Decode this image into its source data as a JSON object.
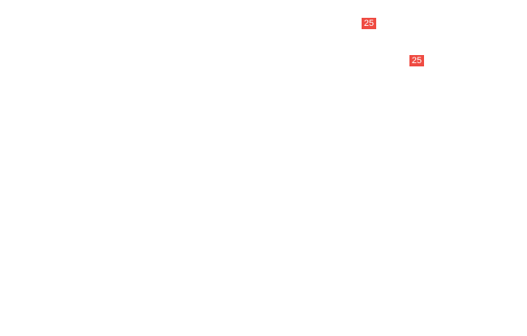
{
  "page": {
    "background_color": "#ffffff"
  },
  "badges": [
    {
      "label": "25",
      "background_color": "#EF4B42",
      "text_color": "#ffffff"
    },
    {
      "label": "25",
      "background_color": "#EF4B42",
      "text_color": "#ffffff"
    }
  ]
}
